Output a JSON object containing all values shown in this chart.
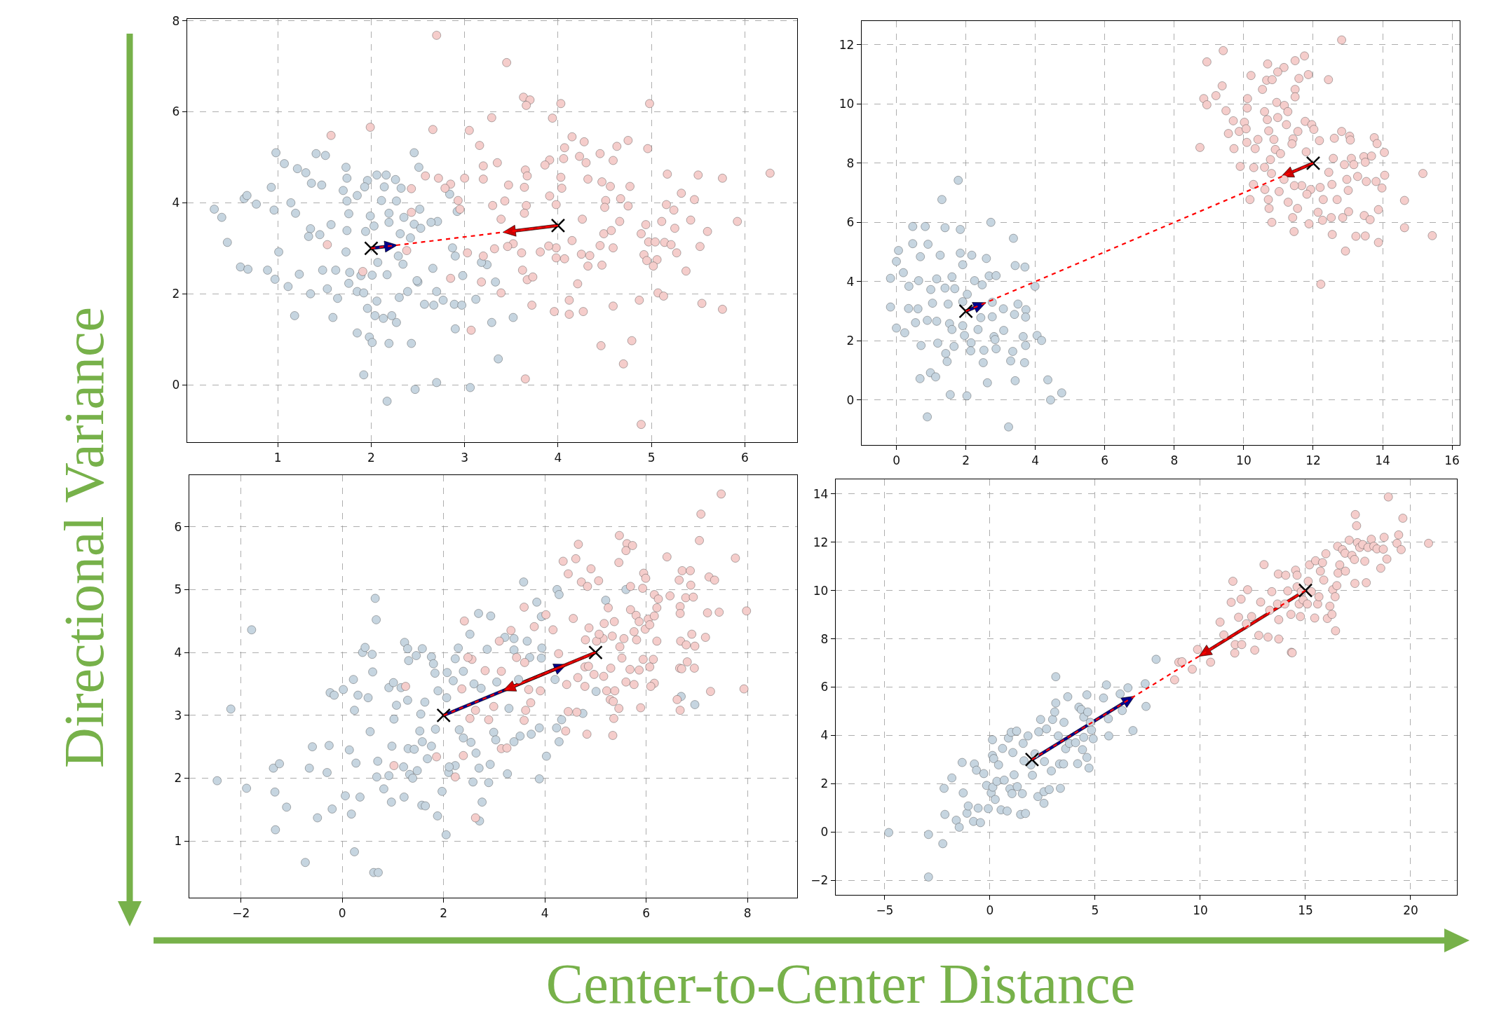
{
  "chart_data": [
    {
      "type": "scatter",
      "marker": "circle",
      "grid": true,
      "xlim": [
        0.03,
        6.56
      ],
      "ylim": [
        -1.26,
        8.04
      ],
      "xticks": [
        1,
        2,
        3,
        4,
        5,
        6
      ],
      "yticks": [
        0,
        2,
        4,
        6,
        8
      ],
      "annotations": [
        "Directional Variance"
      ],
      "series": [
        {
          "color": "#c6d5e0",
          "x": [
            0.32,
            0.4,
            0.46,
            0.64,
            0.67,
            0.77,
            0.6,
            0.68,
            0.98,
            1.07,
            0.93,
            0.96,
            0.89,
            0.97,
            1.01,
            1.11,
            1.18,
            1.21,
            1.3,
            1.36,
            1.41,
            1.51,
            1.14,
            1.19,
            1.35,
            1.33,
            1.45,
            1.47,
            1.23,
            1.35,
            1.48,
            1.53,
            1.59,
            1.64,
            1.62,
            1.57,
            1.73,
            1.74,
            1.7,
            1.74,
            1.76,
            1.74,
            1.73,
            1.77,
            1.76,
            1.85,
            1.85,
            1.92,
            1.98,
            2.01,
            1.96,
            2.06,
            2.04,
            2.13,
            2.19,
            2.17,
            2.27,
            2.22,
            2.3,
            2.39,
            2.43,
            2.47,
            2.5,
            2.57,
            2.67,
            2.7,
            2.77,
            2.9,
            2.7,
            3.06,
            3.36,
            3.52,
            3.29,
            3.12,
            3.33,
            3.24,
            2.89,
            2.97,
            2.98,
            2.9,
            2.87,
            2.71,
            2.64,
            2.52,
            2.46,
            2.53,
            2.42,
            2.31,
            2.35,
            2.32,
            2.27,
            2.26,
            2.16,
            2.06,
            1.96,
            1.93,
            1.85,
            2.14,
            2.11,
            2.19,
            2.19,
            1.99,
            1.94,
            2.03,
            2.07,
            2.17,
            2.01,
            1.89,
            1.92,
            2.34,
            2.29,
            2.46,
            2.51,
            2.84,
            2.92,
            3.18,
            2.49,
            2.66
          ],
          "values": [
            3.86,
            3.68,
            3.13,
            4.09,
            4.16,
            3.97,
            2.59,
            2.54,
            5.1,
            4.86,
            4.34,
            3.84,
            2.52,
            2.32,
            2.92,
            2.16,
            1.52,
            4.75,
            4.66,
            4.43,
            5.08,
            5.04,
            4.0,
            3.77,
            3.43,
            3.26,
            3.3,
            4.39,
            2.43,
            2.0,
            2.52,
            2.11,
            1.48,
            1.9,
            2.52,
            3.52,
            4.78,
            4.54,
            4.27,
            4.04,
            3.76,
            3.39,
            2.92,
            2.47,
            2.23,
            2.05,
            1.14,
            0.22,
            1.05,
            0.93,
            1.68,
            1.84,
            1.52,
            1.46,
            0.91,
            -0.36,
            1.37,
            1.52,
            1.92,
            2.05,
            0.91,
            -0.1,
            2.26,
            1.77,
            1.75,
            2.05,
            1.86,
            1.23,
            0.05,
            -0.06,
            0.57,
            1.48,
            1.37,
            1.88,
            2.26,
            2.64,
            1.77,
            1.75,
            2.4,
            2.83,
            3.01,
            3.59,
            3.57,
            3.86,
            3.53,
            3.44,
            3.23,
            3.32,
            3.68,
            4.32,
            4.04,
            4.51,
            4.61,
            4.61,
            4.49,
            4.35,
            4.16,
            4.35,
            4.05,
            3.77,
            3.57,
            3.71,
            3.37,
            3.49,
            2.69,
            2.42,
            2.41,
            2.4,
            2.02,
            2.65,
            2.83,
            5.1,
            4.78,
            4.19,
            3.81,
            2.69,
            2.29,
            2.56
          ]
        },
        {
          "color": "#f5cdcb",
          "x": [
            2.7,
            3.45,
            3.63,
            3.7,
            3.66,
            4.03,
            4.98,
            3.29,
            3.94,
            1.99,
            2.66,
            1.57,
            3.05,
            3.16,
            4.15,
            4.28,
            4.75,
            4.63,
            4.96,
            4.07,
            4.06,
            4.23,
            4.45,
            4.59,
            4.3,
            3.91,
            3.86,
            3.35,
            3.2,
            3.65,
            3.67,
            2.58,
            2.72,
            3.0,
            3.2,
            3.47,
            3.64,
            4.03,
            4.04,
            4.32,
            4.47,
            4.56,
            4.77,
            5.17,
            5.5,
            5.76,
            6.27,
            5.32,
            5.46,
            4.67,
            4.51,
            4.75,
            4.5,
            5.16,
            5.24,
            3.91,
            3.98,
            3.66,
            3.64,
            3.43,
            3.3,
            2.93,
            2.95,
            2.85,
            2.79,
            2.43,
            2.43,
            3.39,
            4.66,
            4.26,
            4.94,
            5.11,
            5.42,
            5.92,
            5.25,
            5.6,
            4.49,
            4.57,
            4.89,
            4.15,
            4.97,
            5.04,
            5.14,
            5.21,
            5.52,
            4.45,
            4.59,
            3.98,
            3.9,
            3.52,
            3.46,
            3.32,
            3.61,
            3.81,
            3.98,
            4.07,
            4.25,
            4.34,
            4.92,
            4.95,
            5.06,
            5.27,
            5.02,
            4.32,
            4.47,
            5.37,
            3.62,
            3.67,
            3.73,
            4.21,
            3.18,
            2.85,
            3.03,
            3.2,
            2.38,
            1.91,
            1.53,
            3.39,
            3.72,
            3.96,
            4.12,
            4.12,
            4.27,
            4.87,
            5.07,
            5.13,
            5.54,
            5.76,
            4.59,
            3.07,
            4.46,
            4.79,
            4.7,
            3.65,
            4.89
          ],
          "values": [
            7.68,
            7.08,
            6.32,
            6.26,
            6.14,
            6.18,
            6.18,
            5.87,
            5.86,
            5.66,
            5.61,
            5.48,
            5.59,
            5.26,
            5.45,
            5.34,
            5.37,
            5.24,
            5.19,
            5.21,
            4.97,
            5.02,
            5.08,
            4.93,
            4.88,
            4.94,
            4.83,
            4.88,
            4.81,
            4.72,
            4.59,
            4.59,
            4.54,
            4.54,
            4.52,
            4.39,
            4.34,
            4.56,
            4.32,
            4.52,
            4.46,
            4.36,
            4.36,
            4.63,
            4.61,
            4.54,
            4.65,
            4.21,
            4.07,
            4.09,
            4.05,
            3.93,
            3.9,
            3.96,
            3.84,
            4.15,
            3.96,
            3.94,
            3.77,
            4.04,
            3.94,
            4.05,
            3.86,
            4.41,
            4.32,
            4.31,
            3.79,
            3.64,
            3.59,
            3.64,
            3.52,
            3.59,
            3.62,
            3.59,
            3.44,
            3.37,
            3.32,
            3.39,
            3.32,
            3.17,
            3.14,
            3.14,
            3.13,
            3.08,
            3.04,
            3.06,
            3.01,
            3.01,
            3.05,
            3.1,
            3.04,
            2.99,
            2.9,
            2.92,
            2.79,
            2.77,
            2.87,
            2.84,
            2.86,
            2.73,
            2.75,
            2.9,
            2.61,
            2.61,
            2.63,
            2.5,
            2.52,
            2.31,
            2.37,
            2.22,
            2.26,
            2.34,
            2.9,
            2.83,
            2.95,
            2.49,
            3.08,
            2.02,
            1.75,
            1.61,
            1.86,
            1.55,
            1.61,
            1.86,
            2.02,
            1.95,
            1.79,
            1.66,
            1.73,
            1.2,
            0.86,
            0.97,
            0.46,
            0.13,
            -0.87
          ]
        },
        {
          "type": "line",
          "line_style": "dashed",
          "marker": "none",
          "color": "#ff0000",
          "x": [
            2,
            4
          ],
          "values": [
            3,
            3.5
          ]
        },
        {
          "type": "scatter",
          "marker": "cross",
          "color": "#000000",
          "x": [
            2,
            4
          ],
          "values": [
            3,
            3.5
          ]
        }
      ]
    },
    {
      "type": "scatter",
      "marker": "circle",
      "grid": true,
      "xlim": [
        -1.0,
        16.22
      ],
      "ylim": [
        -1.52,
        12.8
      ],
      "xticks": [
        0,
        2,
        4,
        6,
        8,
        10,
        12,
        14,
        16
      ],
      "yticks": [
        0,
        2,
        4,
        6,
        8,
        10,
        12
      ],
      "series": [
        {
          "color": "#c6d5e0",
          "x": [
            1.78,
            1.31,
            0.47,
            0.83,
            1.4,
            1.84,
            2.72,
            3.37,
            0.06,
            0.47,
            0.91,
            0.0,
            0.69,
            1.26,
            1.84,
            2.17,
            2.59,
            3.42,
            3.7,
            -0.17,
            0.2,
            0.64,
            1.16,
            1.6,
            1.91,
            2.25,
            2.67,
            2.87,
            3.99,
            0.36,
            0.99,
            1.4,
            1.68,
            2.47,
            -0.17,
            0.35,
            0.62,
            1.04,
            1.49,
            1.91,
            2.04,
            2.76,
            3.08,
            3.5,
            3.73,
            0.55,
            0.89,
            1.16,
            1.53,
            1.91,
            2.43,
            2.76,
            3.4,
            3.72,
            0.0,
            0.24,
            1.6,
            1.96,
            2.35,
            2.81,
            3.09,
            3.65,
            4.05,
            4.18,
            0.71,
            1.19,
            1.66,
            2.15,
            2.52,
            2.87,
            3.35,
            3.72,
            1.42,
            2.14,
            2.5,
            3.29,
            3.69,
            0.98,
            1.13,
            0.68,
            3.42,
            4.36,
            2.62,
            1.55,
            2.03,
            4.76,
            4.44,
            0.89,
            3.23,
            1.46,
            2.84
          ],
          "values": [
            7.42,
            6.77,
            5.86,
            5.86,
            5.82,
            5.76,
            6.0,
            5.46,
            5.05,
            5.28,
            5.26,
            4.68,
            4.84,
            4.89,
            4.96,
            4.89,
            4.78,
            4.54,
            4.49,
            4.11,
            4.3,
            4.03,
            4.09,
            4.16,
            4.57,
            4.03,
            4.19,
            4.2,
            3.84,
            3.84,
            3.73,
            3.78,
            3.76,
            3.89,
            3.14,
            3.09,
            3.08,
            3.27,
            3.24,
            3.32,
            3.57,
            3.3,
            3.08,
            3.24,
            3.05,
            2.61,
            2.69,
            2.66,
            2.58,
            2.51,
            2.78,
            2.81,
            2.89,
            2.8,
            2.43,
            2.27,
            2.38,
            2.18,
            2.38,
            2.14,
            2.35,
            2.14,
            2.18,
            2.01,
            1.84,
            1.92,
            1.81,
            1.93,
            1.68,
            1.73,
            1.64,
            1.84,
            1.57,
            1.66,
            1.26,
            1.32,
            1.26,
            0.92,
            0.78,
            0.72,
            0.65,
            0.68,
            0.58,
            0.18,
            0.14,
            0.24,
            0.0,
            -0.57,
            -0.91,
            1.3,
            2.04
          ]
        },
        {
          "color": "#f5cdcb",
          "x": [
            12.82,
            9.41,
            8.94,
            10.69,
            11.75,
            11.48,
            11.16,
            10.98,
            11.86,
            10.21,
            10.66,
            10.82,
            12.44,
            11.59,
            9.38,
            10.54,
            11.48,
            9.2,
            8.85,
            8.94,
            10.11,
            11.48,
            10.95,
            11.17,
            9.49,
            10.1,
            10.6,
            11.27,
            10.98,
            10.68,
            9.7,
            10.02,
            11.23,
            11.77,
            11.96,
            9.87,
            9.56,
            10.07,
            10.72,
            11.56,
            12.02,
            12.82,
            13.05,
            13.76,
            8.74,
            9.72,
            10.09,
            10.41,
            10.87,
            11.42,
            12.18,
            12.61,
            13.07,
            13.84,
            10.33,
            10.91,
            11.39,
            11.8,
            14.05,
            10.77,
            11.06,
            12.58,
            13.1,
            13.46,
            13.68,
            9.9,
            10.29,
            10.6,
            12.9,
            13.17,
            13.5,
            12.45,
            14.06,
            15.16,
            10.8,
            11.16,
            11.67,
            10.28,
            10.61,
            11.02,
            11.46,
            11.93,
            12.2,
            12.54,
            12.97,
            13.28,
            13.53,
            13.81,
            13.98,
            10.18,
            10.71,
            11.28,
            11.82,
            12.29,
            12.69,
            13.01,
            14.63,
            10.73,
            11.55,
            12.14,
            12.52,
            13.02,
            13.47,
            13.88,
            10.81,
            11.41,
            11.45,
            11.88,
            12.27,
            12.85,
            13.64,
            14.63,
            15.43,
            12.55,
            13.23,
            13.5,
            13.88,
            12.93,
            12.22
          ],
          "values": [
            12.16,
            11.8,
            11.42,
            11.35,
            11.62,
            11.46,
            11.23,
            11.08,
            10.99,
            10.96,
            10.8,
            10.82,
            10.82,
            10.86,
            10.61,
            10.49,
            10.49,
            10.28,
            10.18,
            9.97,
            10.18,
            10.24,
            10.05,
            9.95,
            9.77,
            9.86,
            9.74,
            9.74,
            9.54,
            9.47,
            9.43,
            9.38,
            9.3,
            9.41,
            9.3,
            9.07,
            9.0,
            9.16,
            9.09,
            9.07,
            9.14,
            9.07,
            8.91,
            8.86,
            8.53,
            8.49,
            8.7,
            8.8,
            8.8,
            8.82,
            8.76,
            8.84,
            8.78,
            8.66,
            8.49,
            8.46,
            8.65,
            8.38,
            8.36,
            8.12,
            8.32,
            8.16,
            8.16,
            8.22,
            8.24,
            7.89,
            7.85,
            7.86,
            7.95,
            7.95,
            8.03,
            7.69,
            7.59,
            7.65,
            7.65,
            7.45,
            7.24,
            7.28,
            7.11,
            7.04,
            7.24,
            7.11,
            7.18,
            7.28,
            7.45,
            7.55,
            7.38,
            7.38,
            7.16,
            6.77,
            6.77,
            6.68,
            6.95,
            6.77,
            6.77,
            7.08,
            6.74,
            6.47,
            6.47,
            6.34,
            6.16,
            6.36,
            6.23,
            6.43,
            6.0,
            6.16,
            5.69,
            5.95,
            6.07,
            6.16,
            6.09,
            5.82,
            5.55,
            5.59,
            5.53,
            5.54,
            5.32,
            5.03,
            3.91
          ]
        },
        {
          "type": "line",
          "line_style": "dashed",
          "marker": "none",
          "color": "#ff0000",
          "x": [
            2,
            12
          ],
          "values": [
            3,
            8
          ]
        },
        {
          "type": "scatter",
          "marker": "cross",
          "color": "#000000",
          "x": [
            2,
            12
          ],
          "values": [
            3,
            8
          ]
        }
      ]
    },
    {
      "type": "scatter",
      "marker": "circle",
      "grid": true,
      "xlim": [
        -3.02,
        8.98
      ],
      "ylim": [
        0.1,
        6.82
      ],
      "xticks": [
        -2,
        0,
        2,
        4,
        6,
        8
      ],
      "yticks": [
        1,
        2,
        3,
        4,
        5,
        6
      ],
      "series": [
        {
          "color": "#c6d5e0",
          "x": [
            -2.47,
            -2.2,
            -1.79,
            -1.89,
            -1.36,
            -1.24,
            -1.33,
            -1.1,
            -1.32,
            -0.73,
            -0.59,
            -0.65,
            -0.49,
            -0.3,
            -0.26,
            -0.2,
            -0.24,
            -0.16,
            0.02,
            0.06,
            0.14,
            0.18,
            0.24,
            0.22,
            0.24,
            0.27,
            0.35,
            0.31,
            0.4,
            0.45,
            0.51,
            0.55,
            0.59,
            0.6,
            0.65,
            0.67,
            0.62,
            0.71,
            0.7,
            0.68,
            0.82,
            0.92,
            0.97,
            0.98,
            1.02,
            0.92,
            1.01,
            1.16,
            1.07,
            1.21,
            1.22,
            1.23,
            1.29,
            1.31,
            1.29,
            1.3,
            1.33,
            1.39,
            1.42,
            1.46,
            1.58,
            1.55,
            1.48,
            1.53,
            1.58,
            1.63,
            1.57,
            1.64,
            1.68,
            1.76,
            1.76,
            1.8,
            1.83,
            1.89,
            1.84,
            1.88,
            1.97,
            2.05,
            2.07,
            2.06,
            2.29,
            2.19,
            2.23,
            2.39,
            2.31,
            2.39,
            2.23,
            2.1,
            2.11,
            2.52,
            2.69,
            2.6,
            2.54,
            2.64,
            2.74,
            2.7,
            2.76,
            2.71,
            2.58,
            2.86,
            2.93,
            2.92,
            2.89,
            2.99,
            3.03,
            3.05,
            3.21,
            3.26,
            3.29,
            3.39,
            3.39,
            3.39,
            3.48,
            3.51,
            3.58,
            3.65,
            3.7,
            3.73,
            3.84,
            3.89,
            3.89,
            3.93,
            3.94,
            3.93,
            4.03,
            4.2,
            4.24,
            4.28,
            4.28,
            4.33,
            4.75,
            5.01,
            5.2,
            5.6,
            6.69,
            6.96,
            4.23
          ],
          "values": [
            1.96,
            3.1,
            4.36,
            1.84,
            2.16,
            2.23,
            1.78,
            1.54,
            1.18,
            0.66,
            2.5,
            2.16,
            1.37,
            2.09,
            2.52,
            1.51,
            3.36,
            3.32,
            3.41,
            1.72,
            2.45,
            1.43,
            0.83,
            3.57,
            3.08,
            2.24,
            1.7,
            3.32,
            4.0,
            4.08,
            3.28,
            2.74,
            3.97,
            3.69,
            4.86,
            4.52,
            0.5,
            0.5,
            2.27,
            2.02,
            1.83,
            2.04,
            1.62,
            2.51,
            2.94,
            3.44,
            3.52,
            3.44,
            3.16,
            2.18,
            1.7,
            4.16,
            4.06,
            3.87,
            3.24,
            2.47,
            2.06,
            2.0,
            2.46,
            3.95,
            4.06,
            3.02,
            2.12,
            2.75,
            2.58,
            3.21,
            1.57,
            1.56,
            2.31,
            2.51,
            3.93,
            3.82,
            3.67,
            3.39,
            2.78,
            1.4,
            1.79,
            1.1,
            3.68,
            3.28,
            4.07,
            3.55,
            3.9,
            3.7,
            2.77,
            2.64,
            2.2,
            2.09,
            2.18,
            4.29,
            4.62,
            3.5,
            2.57,
            2.4,
            3.43,
            2.16,
            1.62,
            1.32,
            1.94,
            4.05,
            4.58,
            2.22,
            1.93,
            2.73,
            2.61,
            3.53,
            4.24,
            2.07,
            3.11,
            4.22,
            2.58,
            4.04,
            3.57,
            2.67,
            5.12,
            4.18,
            3.92,
            2.7,
            4.8,
            2.8,
            1.99,
            4.57,
            4.07,
            3.91,
            2.35,
            3.57,
            5.0,
            4.92,
            2.58,
            2.93,
            3.03,
            3.38,
            4.83,
            5.0,
            3.3,
            3.17,
            2.8
          ]
        },
        {
          "color": "#f5cdcb",
          "x": [
            7.48,
            7.08,
            7.05,
            6.41,
            7.76,
            5.47,
            5.62,
            5.73,
            5.6,
            5.46,
            4.66,
            4.36,
            4.61,
            4.46,
            4.91,
            5.06,
            4.72,
            4.84,
            6.71,
            6.87,
            6.65,
            6.88,
            7.24,
            7.35,
            5.95,
            5.99,
            5.69,
            5.93,
            6.47,
            6.78,
            6.93,
            6.16,
            6.24,
            5.25,
            5.69,
            5.8,
            6.04,
            5.86,
            6.16,
            6.21,
            6.67,
            6.67,
            7.21,
            7.44,
            7.98,
            5.17,
            5.37,
            5.98,
            6.07,
            5.76,
            6.9,
            7.17,
            6.68,
            6.79,
            6.96,
            6.21,
            5.81,
            5.56,
            5.33,
            5.15,
            5.02,
            4.8,
            4.56,
            4.87,
            5.07,
            5.48,
            5.52,
            5.94,
            6.14,
            6.66,
            6.7,
            6.81,
            6.95,
            5.68,
            5.86,
            6.07,
            5.6,
            5.76,
            6.16,
            6.09,
            7.27,
            7.93,
            6.61,
            6.67,
            5.89,
            5.46,
            5.36,
            5.34,
            5.22,
            5.38,
            5.29,
            5.35,
            5.16,
            5.3,
            4.97,
            4.79,
            4.79,
            4.65,
            4.43,
            4.41,
            4.83,
            4.46,
            4.63,
            4.86,
            4.27,
            4.16,
            4.02,
            3.79,
            3.59,
            3.33,
            3.1,
            3.6,
            3.68,
            3.72,
            3.62,
            3.59,
            3.91,
            3.44,
            3.14,
            2.99,
            2.82,
            2.56,
            2.48,
            2.41,
            2.36,
            2.52,
            2.63,
            2.39,
            2.23,
            1.86,
            1.25,
            1.02,
            2.63,
            3.14,
            3.25,
            2.89
          ],
          "values": [
            6.52,
            6.2,
            5.78,
            5.52,
            5.5,
            5.86,
            5.73,
            5.7,
            5.62,
            5.43,
            5.72,
            5.45,
            5.49,
            5.25,
            5.33,
            5.14,
            5.12,
            5.05,
            5.3,
            5.3,
            5.15,
            5.07,
            5.2,
            5.15,
            5.26,
            5.18,
            5.05,
            5.02,
            4.9,
            4.87,
            4.88,
            4.92,
            4.85,
            4.71,
            4.68,
            4.59,
            4.53,
            4.49,
            4.58,
            4.71,
            4.73,
            4.62,
            4.63,
            4.64,
            4.66,
            4.46,
            4.49,
            4.37,
            4.44,
            4.33,
            4.29,
            4.24,
            4.18,
            4.12,
            4.1,
            4.18,
            4.2,
            4.22,
            4.26,
            4.22,
            4.18,
            4.2,
            4.54,
            4.39,
            4.29,
            4.09,
            3.91,
            3.89,
            3.89,
            3.75,
            3.74,
            3.85,
            3.75,
            3.73,
            3.72,
            3.77,
            3.53,
            3.49,
            3.51,
            3.46,
            3.38,
            3.42,
            3.25,
            3.08,
            3.12,
            3.11,
            2.95,
            2.68,
            3.39,
            3.39,
            3.25,
            3.22,
            3.62,
            3.75,
            3.65,
            3.77,
            3.46,
            3.6,
            3.49,
            2.75,
            2.7,
            3.06,
            3.05,
            3.78,
            3.98,
            4.36,
            4.6,
            4.41,
            4.72,
            4.35,
            4.18,
            3.84,
            3.41,
            3.2,
            3.08,
            2.92,
            3.39,
            3.92,
            3.7,
            3.14,
            3.71,
            3.89,
            3.92,
            4.5,
            3.42,
            2.95,
            3.08,
            2.36,
            2.02,
            2.34,
            3.46,
            2.2,
            1.37,
            2.47,
            2.48,
            2.93
          ]
        },
        {
          "type": "line",
          "line_style": "dashed",
          "marker": "none",
          "color": "#ff0000",
          "x": [
            2,
            5
          ],
          "values": [
            3,
            4
          ]
        },
        {
          "type": "scatter",
          "marker": "cross",
          "color": "#000000",
          "x": [
            2,
            5
          ],
          "values": [
            3,
            4
          ]
        }
      ]
    },
    {
      "type": "scatter",
      "marker": "circle",
      "grid": true,
      "xlim": [
        -7.33,
        22.2
      ],
      "ylim": [
        -2.6,
        14.6
      ],
      "xticks": [
        -5,
        0,
        5,
        10,
        15,
        20
      ],
      "yticks": [
        -2,
        0,
        2,
        4,
        6,
        8,
        10,
        12,
        14
      ],
      "annotations": [
        "Center-to-Center Distance"
      ],
      "series": [
        {
          "color": "#c6d5e0",
          "x": [
            -4.81,
            -2.92,
            -2.92,
            -2.24,
            -2.18,
            -2.14,
            -1.81,
            -1.6,
            -1.46,
            -1.32,
            -1.27,
            -1.09,
            -1.03,
            -0.74,
            -0.78,
            -0.64,
            -0.56,
            -0.45,
            -0.29,
            -0.16,
            -0.08,
            0.06,
            0.12,
            0.12,
            0.18,
            0.14,
            0.25,
            0.33,
            0.41,
            0.53,
            0.6,
            0.68,
            0.82,
            0.88,
            0.95,
            1.01,
            1.05,
            1.09,
            1.15,
            1.27,
            1.3,
            1.46,
            1.54,
            1.58,
            1.62,
            1.69,
            1.81,
            1.95,
            2.02,
            2.14,
            2.28,
            2.32,
            2.41,
            2.57,
            2.59,
            2.57,
            2.69,
            2.82,
            2.92,
            2.98,
            3.08,
            3.13,
            3.13,
            3.25,
            3.31,
            3.35,
            3.5,
            3.52,
            3.6,
            3.7,
            3.78,
            4.07,
            4.17,
            4.23,
            4.34,
            4.4,
            4.46,
            4.46,
            4.61,
            4.61,
            4.65,
            4.71,
            4.77,
            4.83,
            4.91,
            5.4,
            5.54,
            5.63,
            5.65,
            6.19,
            6.29,
            6.56,
            6.8,
            7.38,
            7.42,
            7.9
          ],
          "values": [
            -0.02,
            -0.1,
            -1.86,
            -0.48,
            1.81,
            0.73,
            2.24,
            0.49,
            0.2,
            2.88,
            1.62,
            0.78,
            1.08,
            2.82,
            0.44,
            2.56,
            0.99,
            0.39,
            2.42,
            1.93,
            0.97,
            1.62,
            3.82,
            3.17,
            3.04,
            1.86,
            1.35,
            2.1,
            2.78,
            0.92,
            3.46,
            2.15,
            0.87,
            3.89,
            1.79,
            4.13,
            1.59,
            3.29,
            2.37,
            4.18,
            1.88,
            0.73,
            1.59,
            3.67,
            2.95,
            0.77,
            3.98,
            2.78,
            2.35,
            3.24,
            1.47,
            4.15,
            4.66,
            1.67,
            2.92,
            1.19,
            4.27,
            1.76,
            2.53,
            4.66,
            4.97,
            6.43,
            5.34,
            3.98,
            2.82,
            1.81,
            2.82,
            4.54,
            3.45,
            5.6,
            3.67,
            3.7,
            2.83,
            5.17,
            5.07,
            3.41,
            3.92,
            4.76,
            5.68,
            3.09,
            4.97,
            2.65,
            4.54,
            4.22,
            3.86,
            5.55,
            6.09,
            4.69,
            3.98,
            5.72,
            5.03,
            5.97,
            4.2,
            6.14,
            5.2,
            7.15
          ]
        },
        {
          "color": "#f5cdcb",
          "x": [
            8.78,
            8.98,
            9.13,
            9.62,
            9.87,
            10.49,
            10.94,
            11.12,
            11.64,
            11.66,
            11.97,
            12.59,
            14.33,
            16.43,
            11.47,
            11.55,
            11.82,
            11.94,
            12.19,
            12.25,
            12.44,
            12.78,
            12.87,
            13.03,
            13.22,
            13.3,
            13.4,
            13.71,
            13.73,
            13.67,
            13.73,
            14.02,
            14.06,
            14.16,
            14.53,
            14.31,
            14.37,
            14.6,
            14.7,
            14.76,
            14.89,
            15.13,
            15.19,
            15.28,
            15.44,
            15.58,
            15.48,
            15.71,
            15.87,
            15.97,
            16.04,
            16.16,
            16.26,
            16.3,
            16.41,
            16.49,
            16.55,
            16.53,
            16.63,
            16.76,
            16.9,
            16.88,
            17.08,
            17.21,
            17.33,
            17.37,
            17.43,
            17.35,
            17.47,
            17.58,
            17.72,
            17.82,
            17.89,
            17.97,
            18.13,
            18.25,
            18.4,
            18.58,
            18.7,
            18.74,
            18.87,
            18.94,
            19.35,
            19.43,
            19.55,
            19.63,
            20.85,
            14.6,
            14.8,
            15.09,
            15.81,
            15.64
          ],
          "values": [
            6.3,
            7.03,
            7.05,
            6.74,
            7.56,
            7.03,
            8.69,
            8.16,
            7.41,
            7.76,
            7.76,
            7.53,
            7.44,
            8.33,
            9.51,
            10.38,
            8.89,
            9.64,
            8.62,
            10.03,
            8.92,
            8.14,
            9.52,
            11.07,
            8.07,
            9.18,
            9.95,
            10.68,
            7.99,
            9.44,
            8.79,
            9.44,
            10.63,
            9.98,
            10.84,
            9.01,
            7.42,
            10.15,
            9.44,
            8.92,
            9.61,
            10.38,
            11.06,
            9.95,
            8.86,
            9.44,
            11.23,
            10.8,
            10.43,
            11.52,
            8.84,
            9.35,
            9.01,
            10.03,
            9.74,
            10.2,
            10.72,
            11.83,
            11.06,
            11.69,
            10.8,
            11.54,
            12.08,
            11.45,
            11.28,
            13.14,
            12.68,
            10.29,
            11.98,
            11.78,
            11.9,
            11.21,
            10.32,
            11.78,
            12.12,
            11.83,
            11.72,
            10.92,
            11.71,
            12.2,
            11.3,
            13.87,
            11.95,
            12.3,
            11.69,
            12.99,
            11.95,
            10.63,
            9.95,
            9.44,
            11.15,
            9.74
          ]
        },
        {
          "type": "line",
          "line_style": "dashed",
          "marker": "none",
          "color": "#ff0000",
          "x": [
            2,
            15
          ],
          "values": [
            3,
            10
          ]
        },
        {
          "type": "scatter",
          "marker": "cross",
          "color": "#000000",
          "x": [
            2,
            15
          ],
          "values": [
            3,
            10
          ]
        }
      ]
    }
  ]
}
